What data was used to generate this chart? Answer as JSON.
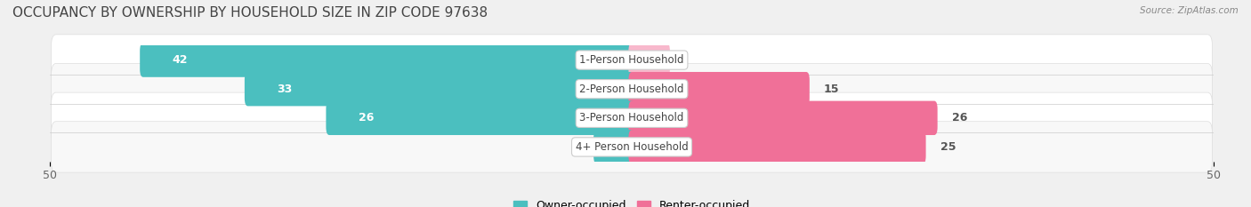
{
  "title": "OCCUPANCY BY OWNERSHIP BY HOUSEHOLD SIZE IN ZIP CODE 97638",
  "source": "Source: ZipAtlas.com",
  "categories": [
    "1-Person Household",
    "2-Person Household",
    "3-Person Household",
    "4+ Person Household"
  ],
  "owner_values": [
    42,
    33,
    26,
    0
  ],
  "renter_values": [
    0,
    15,
    26,
    25
  ],
  "owner_color": "#4BBFBF",
  "renter_color": "#F07098",
  "renter_color_light": "#F8B8CC",
  "bg_color": "#F0F0F0",
  "row_bg_even": "#EFEFEF",
  "row_bg_odd": "#E8E8E8",
  "axis_limit": 50,
  "title_fontsize": 11,
  "bar_label_fontsize": 9,
  "category_fontsize": 8.5,
  "legend_fontsize": 9,
  "axis_tick_fontsize": 9,
  "bar_height": 0.62
}
